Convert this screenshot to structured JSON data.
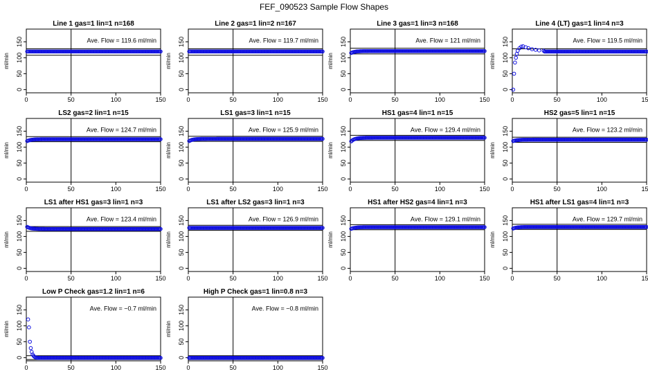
{
  "figure": {
    "title": "FEF_090523  Sample Flow Shapes",
    "colors": {
      "points": "#1010e0",
      "lines": "#000000"
    }
  },
  "chart_data": [
    {
      "type": "scatter",
      "title": "Line 1 gas=1 lin=1 n=168",
      "ylabel": "ml/min",
      "xlim": [
        0,
        150
      ],
      "ylim": [
        -10,
        190
      ],
      "xticks": [
        0,
        50,
        100,
        150
      ],
      "yticks": [
        0,
        50,
        100,
        150
      ],
      "annotation": "Ave. Flow =  119.6  ml/min",
      "shape": "flat",
      "steady": 119.6,
      "hlines": [
        128,
        108
      ],
      "vline": 50,
      "grid": false
    },
    {
      "type": "scatter",
      "title": "Line 2 gas=1 lin=2 n=167",
      "ylabel": "ml/min",
      "xlim": [
        0,
        150
      ],
      "ylim": [
        -10,
        190
      ],
      "xticks": [
        0,
        50,
        100,
        150
      ],
      "yticks": [
        0,
        50,
        100,
        150
      ],
      "annotation": "Ave. Flow =  119.7  ml/min",
      "shape": "flat",
      "steady": 119.7,
      "hlines": [
        128,
        108
      ],
      "vline": 50,
      "grid": false
    },
    {
      "type": "scatter",
      "title": "Line 3 gas=1 lin=3 n=168",
      "ylabel": "ml/min",
      "xlim": [
        0,
        150
      ],
      "ylim": [
        -10,
        190
      ],
      "xticks": [
        0,
        50,
        100,
        150
      ],
      "yticks": [
        0,
        50,
        100,
        150
      ],
      "annotation": "Ave. Flow =  121  ml/min",
      "shape": "rise",
      "start": 115,
      "steady": 121,
      "hlines": [
        130,
        112
      ],
      "vline": 50,
      "grid": false
    },
    {
      "type": "scatter",
      "title": "Line 4 (LT) gas=1 lin=4 n=3",
      "ylabel": "ml/min",
      "xlim": [
        0,
        150
      ],
      "ylim": [
        -10,
        190
      ],
      "xticks": [
        0,
        50,
        100,
        150
      ],
      "yticks": [
        0,
        50,
        100,
        150
      ],
      "annotation": "Ave. Flow =  119.5  ml/min",
      "shape": "overshoot",
      "steady": 119.5,
      "startPoints": [
        [
          1,
          0
        ],
        [
          2,
          50
        ],
        [
          3,
          85
        ],
        [
          4,
          100
        ],
        [
          5,
          112
        ],
        [
          6,
          122
        ],
        [
          8,
          130
        ],
        [
          10,
          135
        ],
        [
          12,
          136
        ],
        [
          15,
          133
        ],
        [
          18,
          130
        ],
        [
          22,
          127
        ],
        [
          26,
          125
        ],
        [
          30,
          123
        ],
        [
          35,
          122
        ]
      ],
      "hlines": [
        128,
        108
      ],
      "vline": 50,
      "grid": false
    },
    {
      "type": "scatter",
      "title": "LS2 gas=2 lin=1 n=15",
      "ylabel": "ml/min",
      "xlim": [
        0,
        150
      ],
      "ylim": [
        -10,
        190
      ],
      "xticks": [
        0,
        50,
        100,
        150
      ],
      "yticks": [
        0,
        50,
        100,
        150
      ],
      "annotation": "Ave. Flow =  124.7  ml/min",
      "shape": "rise",
      "start": 119,
      "steady": 124.7,
      "hlines": [
        133,
        117
      ],
      "vline": 50,
      "grid": false
    },
    {
      "type": "scatter",
      "title": "LS1 gas=3 lin=1 n=15",
      "ylabel": "ml/min",
      "xlim": [
        0,
        150
      ],
      "ylim": [
        -10,
        190
      ],
      "xticks": [
        0,
        50,
        100,
        150
      ],
      "yticks": [
        0,
        50,
        100,
        150
      ],
      "annotation": "Ave. Flow =  125.9  ml/min",
      "shape": "rise",
      "start": 119,
      "steady": 125.9,
      "hlines": [
        134,
        118
      ],
      "vline": 50,
      "grid": false
    },
    {
      "type": "scatter",
      "title": "HS1 gas=4 lin=1 n=15",
      "ylabel": "ml/min",
      "xlim": [
        0,
        150
      ],
      "ylim": [
        -10,
        190
      ],
      "xticks": [
        0,
        50,
        100,
        150
      ],
      "yticks": [
        0,
        50,
        100,
        150
      ],
      "annotation": "Ave. Flow =  129.4  ml/min",
      "shape": "rise",
      "start": 118,
      "steady": 129.4,
      "hlines": [
        137,
        121
      ],
      "vline": 50,
      "grid": false
    },
    {
      "type": "scatter",
      "title": "HS2 gas=5 lin=1 n=15",
      "ylabel": "ml/min",
      "xlim": [
        0,
        150
      ],
      "ylim": [
        -10,
        190
      ],
      "xticks": [
        0,
        50,
        100,
        150
      ],
      "yticks": [
        0,
        50,
        100,
        150
      ],
      "annotation": "Ave. Flow =  123.2  ml/min",
      "shape": "rise",
      "start": 119,
      "steady": 123.2,
      "hlines": [
        131,
        115
      ],
      "vline": 50,
      "grid": false
    },
    {
      "type": "scatter",
      "title": "LS1 after HS1 gas=3 lin=1 n=3",
      "ylabel": "ml/min",
      "xlim": [
        0,
        150
      ],
      "ylim": [
        -10,
        190
      ],
      "xticks": [
        0,
        50,
        100,
        150
      ],
      "yticks": [
        0,
        50,
        100,
        150
      ],
      "annotation": "Ave. Flow =  123.4  ml/min",
      "shape": "fall",
      "start": 130,
      "steady": 123.4,
      "hlines": [
        131,
        116
      ],
      "vline": 50,
      "grid": false
    },
    {
      "type": "scatter",
      "title": "LS1 after LS2 gas=3 lin=1 n=3",
      "ylabel": "ml/min",
      "xlim": [
        0,
        150
      ],
      "ylim": [
        -10,
        190
      ],
      "xticks": [
        0,
        50,
        100,
        150
      ],
      "yticks": [
        0,
        50,
        100,
        150
      ],
      "annotation": "Ave. Flow =  126.9  ml/min",
      "shape": "flat",
      "steady": 126.9,
      "hlines": [
        135,
        119
      ],
      "vline": 50,
      "grid": false
    },
    {
      "type": "scatter",
      "title": "HS1 after HS2 gas=4 lin=1 n=3",
      "ylabel": "ml/min",
      "xlim": [
        0,
        150
      ],
      "ylim": [
        -10,
        190
      ],
      "xticks": [
        0,
        50,
        100,
        150
      ],
      "yticks": [
        0,
        50,
        100,
        150
      ],
      "annotation": "Ave. Flow =  129.1  ml/min",
      "shape": "rise",
      "start": 124,
      "steady": 129.1,
      "hlines": [
        137,
        121
      ],
      "vline": 50,
      "grid": false
    },
    {
      "type": "scatter",
      "title": "HS1 after LS1 gas=4 lin=1 n=3",
      "ylabel": "ml/min",
      "xlim": [
        0,
        150
      ],
      "ylim": [
        -10,
        190
      ],
      "xticks": [
        0,
        50,
        100,
        150
      ],
      "yticks": [
        0,
        50,
        100,
        150
      ],
      "annotation": "Ave. Flow =  129.7  ml/min",
      "shape": "rise",
      "start": 125,
      "steady": 129.7,
      "hlines": [
        138,
        122
      ],
      "vline": 50,
      "grid": false
    },
    {
      "type": "scatter",
      "title": "Low P Check gas=1.2 lin=1 n=6",
      "ylabel": "ml/min",
      "xlim": [
        0,
        150
      ],
      "ylim": [
        -10,
        190
      ],
      "xticks": [
        0,
        50,
        100,
        150
      ],
      "yticks": [
        0,
        50,
        100,
        150
      ],
      "annotation": "Ave. Flow =  −0.7  ml/min",
      "shape": "decay",
      "steady": -0.7,
      "startPoints": [
        [
          2,
          120
        ],
        [
          3,
          95
        ],
        [
          4,
          50
        ],
        [
          5,
          30
        ],
        [
          6,
          18
        ],
        [
          7,
          10
        ],
        [
          8,
          6
        ],
        [
          9,
          3
        ],
        [
          10,
          1
        ],
        [
          11,
          0
        ],
        [
          12,
          0
        ]
      ],
      "hlines": [
        6,
        -6
      ],
      "vline": 50,
      "grid": false
    },
    {
      "type": "scatter",
      "title": "High P Check gas=1 lin=0.8 n=3",
      "ylabel": "ml/min",
      "xlim": [
        0,
        150
      ],
      "ylim": [
        -10,
        190
      ],
      "xticks": [
        0,
        50,
        100,
        150
      ],
      "yticks": [
        0,
        50,
        100,
        150
      ],
      "annotation": "Ave. Flow =  −0.8  ml/min",
      "shape": "flat",
      "steady": -0.8,
      "hlines": [
        6,
        -6
      ],
      "vline": 50,
      "grid": false
    }
  ]
}
